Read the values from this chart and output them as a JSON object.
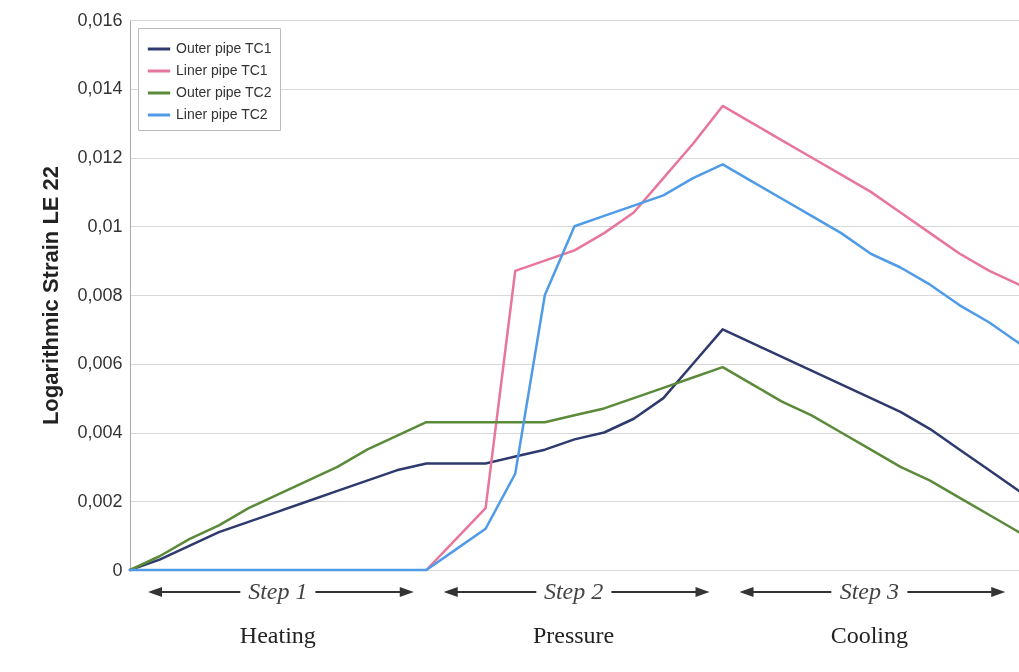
{
  "chart_data": {
    "type": "line",
    "ylabel": "Logarithmic Strain LE 22",
    "categories": [
      null,
      null,
      null,
      null,
      null,
      null,
      null,
      null,
      null,
      null,
      null,
      null,
      null,
      null,
      null,
      null,
      null,
      null,
      null,
      null,
      null,
      null,
      null,
      null,
      null,
      null,
      null,
      null,
      null,
      null,
      null
    ],
    "series": [
      {
        "name": "Outer pipe TC1",
        "color": "#2e3a6e",
        "values": [
          0,
          0.0003,
          0.0007,
          0.0011,
          0.0014,
          0.0017,
          0.002,
          0.0023,
          0.0026,
          0.0029,
          0.0031,
          0.0031,
          0.0031,
          0.0033,
          0.0035,
          0.0038,
          0.004,
          0.0044,
          0.005,
          0.006,
          0.007,
          0.0066,
          0.0062,
          0.0058,
          0.0054,
          0.005,
          0.0046,
          0.0041,
          0.0035,
          0.0029,
          0.0023
        ]
      },
      {
        "name": "Liner pipe TC1",
        "color": "#e8769a",
        "values": [
          null,
          null,
          null,
          null,
          null,
          null,
          null,
          null,
          null,
          null,
          0,
          0.0009,
          0.0018,
          0.0087,
          0.009,
          0.0093,
          0.0098,
          0.0104,
          0.0114,
          0.0124,
          0.0135,
          0.013,
          0.0125,
          0.012,
          0.0115,
          0.011,
          0.0104,
          0.0098,
          0.0092,
          0.0087,
          0.0083
        ]
      },
      {
        "name": "Outer pipe TC2",
        "color": "#5a8a3a",
        "values": [
          0,
          0.0004,
          0.0009,
          0.0013,
          0.0018,
          0.0022,
          0.0026,
          0.003,
          0.0035,
          0.0039,
          0.0043,
          0.0043,
          0.0043,
          0.0043,
          0.0043,
          0.0045,
          0.0047,
          0.005,
          0.0053,
          0.0056,
          0.0059,
          0.0054,
          0.0049,
          0.0045,
          0.004,
          0.0035,
          0.003,
          0.0026,
          0.0021,
          0.0016,
          0.0011
        ]
      },
      {
        "name": "Liner pipe TC2",
        "color": "#4f9be8",
        "values": [
          0,
          0,
          0,
          0,
          0,
          0,
          0,
          0,
          0,
          0,
          0,
          0.0006,
          0.0012,
          0.0028,
          0.008,
          0.01,
          0.0103,
          0.0106,
          0.0109,
          0.0114,
          0.0118,
          0.0113,
          0.0108,
          0.0103,
          0.0098,
          0.0092,
          0.0088,
          0.0083,
          0.0077,
          0.0072,
          0.0066
        ]
      }
    ],
    "ylim": [
      0,
      0.016
    ],
    "yticks": [
      0,
      {
        "value": 0.002,
        "label": "0,002"
      },
      {
        "value": 0.004,
        "label": "0,004"
      },
      {
        "value": 0.006,
        "label": "0,006"
      },
      {
        "value": 0.008,
        "label": "0,008"
      },
      {
        "value": 0.01,
        "label": "0,01"
      },
      {
        "value": 0.012,
        "label": "0,012"
      },
      {
        "value": 0.014,
        "label": "0,014"
      },
      {
        "value": 0.016,
        "label": "0,016"
      }
    ],
    "grid": "y",
    "legend": "top left",
    "tick_labels": "y",
    "marker": "none",
    "line_style": "solid",
    "annotations": [
      "Step 1",
      "Heating",
      "Step 2",
      "Pressure",
      "Step 3",
      "Cooling"
    ]
  }
}
